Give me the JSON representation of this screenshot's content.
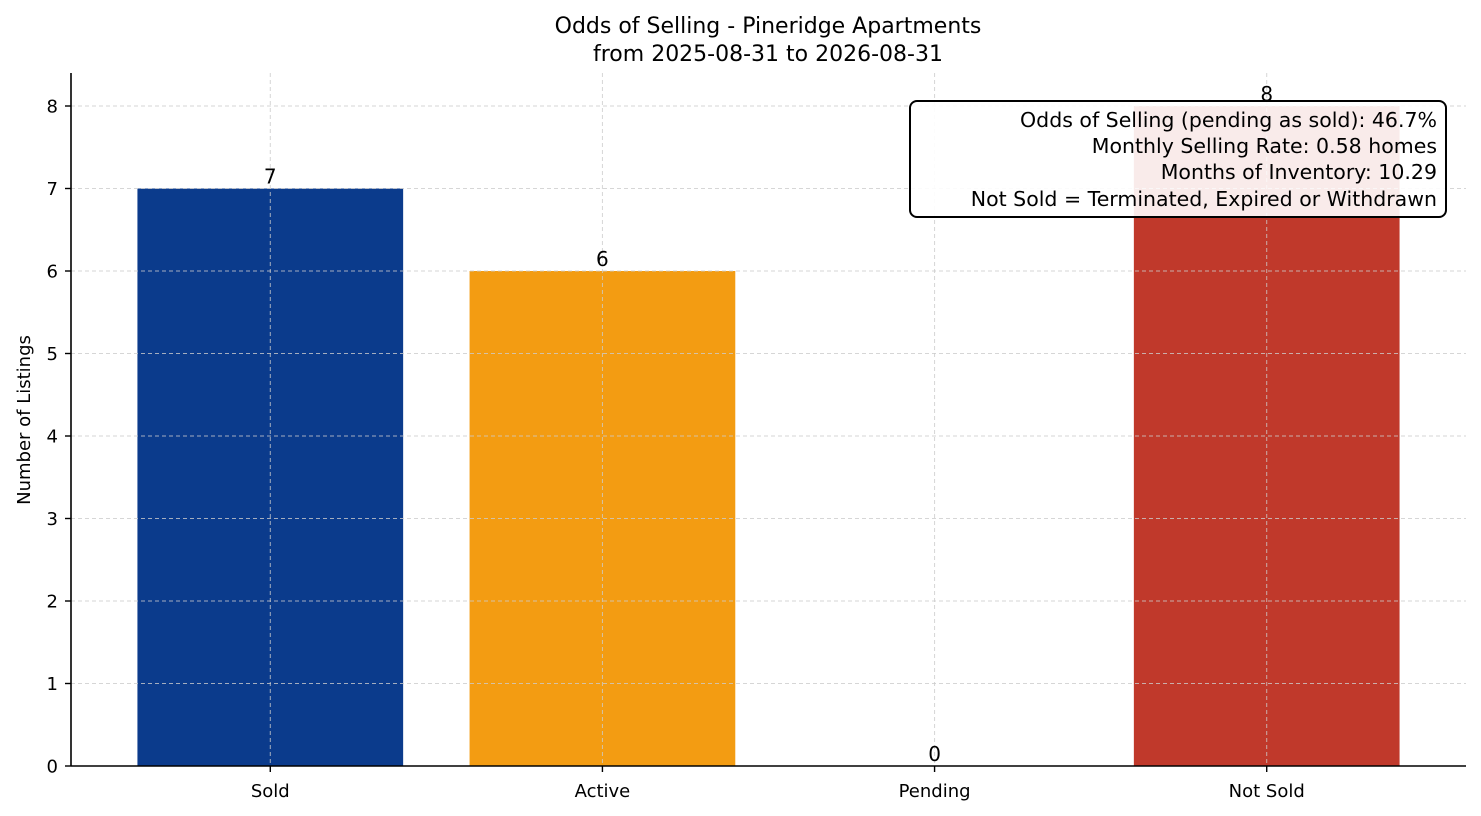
{
  "chart_data": {
    "type": "bar",
    "title": "Odds of Selling - Pineridge Apartments",
    "subtitle": "from 2025-08-31 to 2026-08-31",
    "xlabel": "",
    "ylabel": "Number of Listings",
    "categories": [
      "Sold",
      "Active",
      "Pending",
      "Not Sold"
    ],
    "values": [
      7,
      6,
      0,
      8
    ],
    "colors": [
      "#0b3b8c",
      "#f39c12",
      "#7f8c8d",
      "#c0392b"
    ],
    "ylim": [
      0,
      8.4
    ],
    "yticks": [
      0,
      1,
      2,
      3,
      4,
      5,
      6,
      7,
      8
    ],
    "grid": true,
    "annotation": {
      "placement": "top-right",
      "lines": [
        "Odds of Selling (pending as sold): 46.7%",
        "Monthly Selling Rate: 0.58 homes",
        "Months of Inventory: 10.29",
        "Not Sold = Terminated, Expired or Withdrawn"
      ]
    }
  }
}
